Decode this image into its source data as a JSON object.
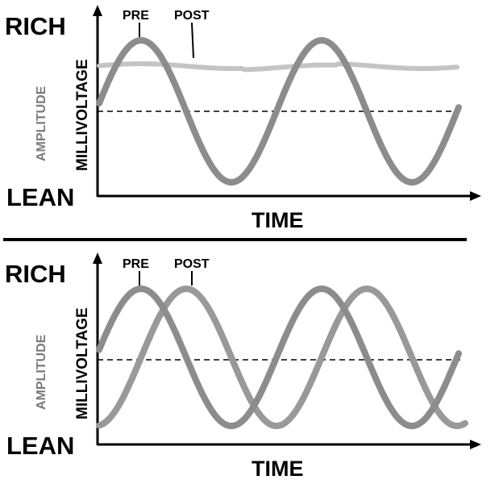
{
  "panels": [
    {
      "rich_label": "RICH",
      "lean_label": "LEAN",
      "amplitude_label": "AMPLITUDE",
      "millivoltage_label": "MILLIVOLTAGE",
      "time_label": "TIME",
      "pre_label": "PRE",
      "post_label": "POST",
      "post_behavior": "flat"
    },
    {
      "rich_label": "RICH",
      "lean_label": "LEAN",
      "amplitude_label": "AMPLITUDE",
      "millivoltage_label": "MILLIVOLTAGE",
      "time_label": "TIME",
      "pre_label": "PRE",
      "post_label": "POST",
      "post_behavior": "oscillating"
    }
  ],
  "colors": {
    "pre_signal": "#8c8c8c",
    "post_signal_flat": "#c4c4c4",
    "post_signal_osc": "#999999",
    "axis": "#000000",
    "midline": "#000000"
  }
}
